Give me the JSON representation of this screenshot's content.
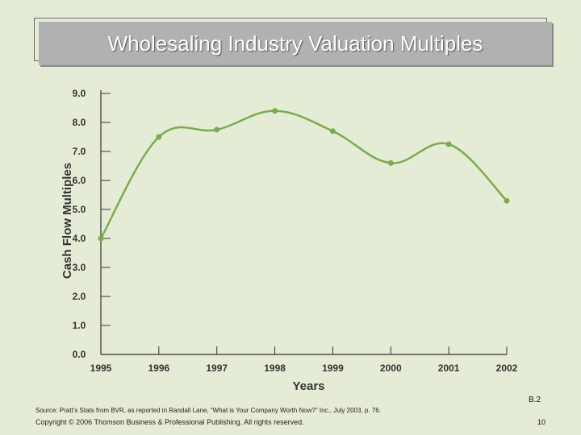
{
  "slide": {
    "title": "Wholesaling Industry Valuation Multiples",
    "source": "Source: Pratt’s Stats from BVR, as reported in Randall Lane, “What is Your Company Worth Now?” Inc., July 2003, p. 76.",
    "copyright": "Copyright © 2006 Thomson Business & Professional Publishing. All rights reserved.",
    "figure_label": "B.2",
    "page_number": "10"
  },
  "chart_data": {
    "type": "line",
    "title": "",
    "xlabel": "Years",
    "ylabel": "Cash Flow Multiples",
    "categories": [
      "1995",
      "1996",
      "1997",
      "1998",
      "1999",
      "2000",
      "2001",
      "2002"
    ],
    "values": [
      4.0,
      7.5,
      7.75,
      8.4,
      7.7,
      6.6,
      7.25,
      5.3
    ],
    "yticks": [
      "0.0",
      "1.0",
      "2.0",
      "3.0",
      "4.0",
      "5.0",
      "6.0",
      "7.0",
      "8.0",
      "9.0"
    ],
    "ylim": [
      0,
      9
    ],
    "grid": false,
    "colors": {
      "line": "#7cab4e",
      "axis": "#333333"
    }
  }
}
